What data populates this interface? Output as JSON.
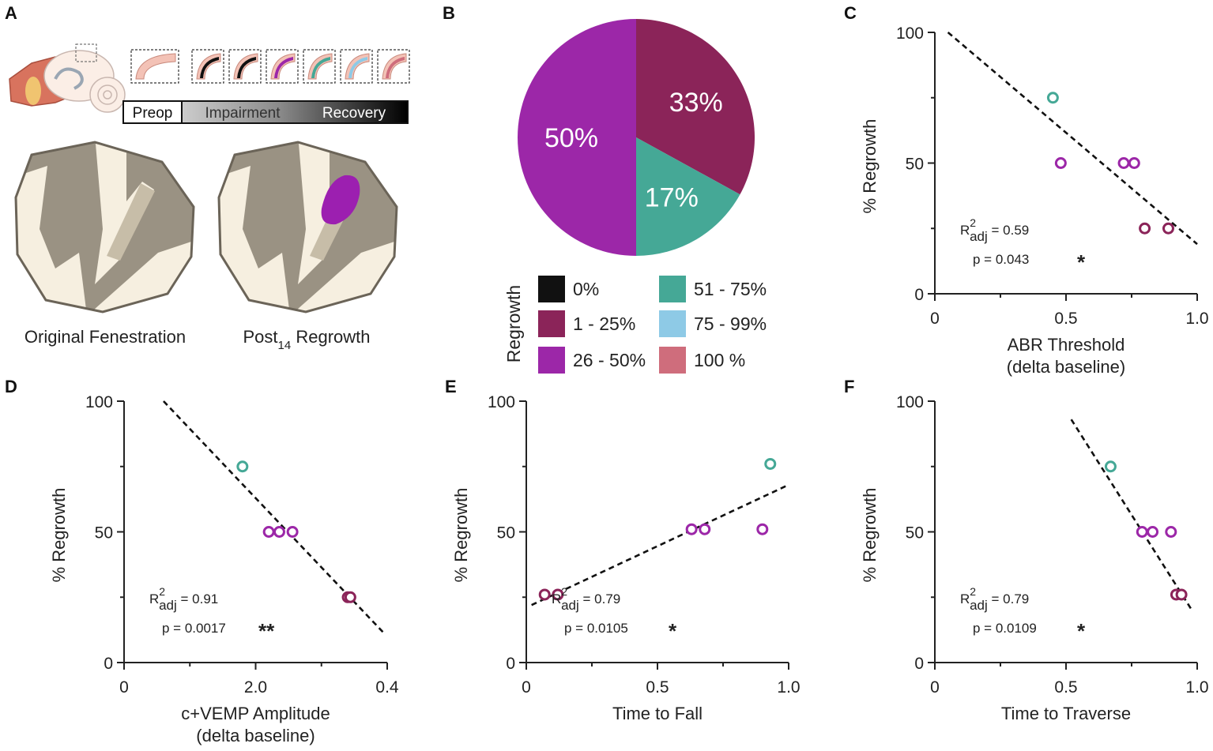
{
  "panel_labels": {
    "a": "A",
    "b": "B",
    "c": "C",
    "d": "D",
    "e": "E",
    "f": "F"
  },
  "panel_a": {
    "stage_bar": {
      "preop": "Preop",
      "impairment": "Impairment",
      "recovery": "Recovery"
    },
    "caption_left": "Original Fenestration",
    "caption_right_main": "Post",
    "caption_right_sub": "14",
    "caption_right_tail": " Regrowth",
    "icon_fill_colors": [
      "#ffffff",
      "#111111",
      "#111111",
      "#9c27a8",
      "#45a896",
      "#8ecae6",
      "#cf6d7c"
    ]
  },
  "colors": {
    "c0": "#111111",
    "c1_25": "#8b2459",
    "c26_50": "#9c27a8",
    "c51_75": "#45a896",
    "c75_99": "#8ecae6",
    "c100": "#cf6d7c",
    "regrowth_patch": "#9c1fb0"
  },
  "chart_data": [
    {
      "id": "B",
      "type": "pie",
      "slices": [
        {
          "label": "33%",
          "value": 33,
          "color": "#8b2459"
        },
        {
          "label": "17%",
          "value": 17,
          "color": "#45a896"
        },
        {
          "label": "50%",
          "value": 50,
          "color": "#9c27a8"
        }
      ],
      "legend_title": "Regrowth",
      "legend": [
        {
          "label": "0%",
          "color": "#111111"
        },
        {
          "label": "51 - 75%",
          "color": "#45a896"
        },
        {
          "label": "1 - 25%",
          "color": "#8b2459"
        },
        {
          "label": "75 - 99%",
          "color": "#8ecae6"
        },
        {
          "label": "26 - 50%",
          "color": "#9c27a8"
        },
        {
          "label": "100 %",
          "color": "#cf6d7c"
        }
      ]
    },
    {
      "id": "C",
      "type": "scatter",
      "xlabel": [
        "ABR Threshold",
        "(delta baseline)"
      ],
      "ylabel": "% Regrowth",
      "xlim": [
        0,
        1
      ],
      "ylim": [
        0,
        100
      ],
      "xticks": [
        "0",
        "0.5",
        "1.0"
      ],
      "yticks": [
        "0",
        "50",
        "100"
      ],
      "points": [
        {
          "x": 0.45,
          "y": 75,
          "color": "#45a896"
        },
        {
          "x": 0.48,
          "y": 50,
          "color": "#9c27a8"
        },
        {
          "x": 0.72,
          "y": 50,
          "color": "#9c27a8"
        },
        {
          "x": 0.76,
          "y": 50,
          "color": "#9c27a8"
        },
        {
          "x": 0.8,
          "y": 25,
          "color": "#8b2459"
        },
        {
          "x": 0.89,
          "y": 25,
          "color": "#8b2459"
        }
      ],
      "fit": {
        "x": [
          0.05,
          1.0
        ],
        "y": [
          100,
          19
        ]
      },
      "stat": {
        "r2_label": "R",
        "r2_sup": "2",
        "r2_sub": "adj",
        "r2_value": " = 0.59",
        "p": "p = 0.043",
        "sig": "*"
      }
    },
    {
      "id": "D",
      "type": "scatter",
      "xlabel": [
        "c+VEMP Amplitude",
        "(delta baseline)"
      ],
      "ylabel": "% Regrowth",
      "xlim": [
        0,
        1
      ],
      "ylim": [
        0,
        100
      ],
      "xticks": [
        "0",
        "2.0",
        "0.4"
      ],
      "yticks": [
        "0",
        "50",
        "100"
      ],
      "points": [
        {
          "x": 0.45,
          "y": 75,
          "color": "#45a896"
        },
        {
          "x": 0.55,
          "y": 50,
          "color": "#9c27a8"
        },
        {
          "x": 0.59,
          "y": 50,
          "color": "#9c27a8"
        },
        {
          "x": 0.64,
          "y": 50,
          "color": "#9c27a8"
        },
        {
          "x": 0.85,
          "y": 25,
          "color": "#8b2459"
        },
        {
          "x": 0.86,
          "y": 25,
          "color": "#8b2459"
        }
      ],
      "fit": {
        "x": [
          0.15,
          0.99
        ],
        "y": [
          100,
          11
        ]
      },
      "stat": {
        "r2_label": "R",
        "r2_sup": "2",
        "r2_sub": "adj",
        "r2_value": " = 0.91",
        "p": "p = 0.0017",
        "sig": "**"
      }
    },
    {
      "id": "E",
      "type": "scatter",
      "xlabel": [
        "Time to Fall"
      ],
      "ylabel": "% Regrowth",
      "xlim": [
        0,
        1
      ],
      "ylim": [
        0,
        100
      ],
      "xticks": [
        "0",
        "0.5",
        "1.0"
      ],
      "yticks": [
        "0",
        "50",
        "100"
      ],
      "points": [
        {
          "x": 0.93,
          "y": 76,
          "color": "#45a896"
        },
        {
          "x": 0.63,
          "y": 51,
          "color": "#9c27a8"
        },
        {
          "x": 0.68,
          "y": 51,
          "color": "#9c27a8"
        },
        {
          "x": 0.9,
          "y": 51,
          "color": "#9c27a8"
        },
        {
          "x": 0.07,
          "y": 26,
          "color": "#8b2459"
        },
        {
          "x": 0.12,
          "y": 26,
          "color": "#8b2459"
        }
      ],
      "fit": {
        "x": [
          0.02,
          1.0
        ],
        "y": [
          22,
          68
        ]
      },
      "stat": {
        "r2_label": "R",
        "r2_sup": "2",
        "r2_sub": "adj",
        "r2_value": " = 0.79",
        "p": "p = 0.0105",
        "sig": "*"
      }
    },
    {
      "id": "F",
      "type": "scatter",
      "xlabel": [
        "Time to Traverse"
      ],
      "ylabel": "% Regrowth",
      "xlim": [
        0,
        1
      ],
      "ylim": [
        0,
        100
      ],
      "xticks": [
        "0",
        "0.5",
        "1.0"
      ],
      "yticks": [
        "0",
        "50",
        "100"
      ],
      "points": [
        {
          "x": 0.67,
          "y": 75,
          "color": "#45a896"
        },
        {
          "x": 0.79,
          "y": 50,
          "color": "#9c27a8"
        },
        {
          "x": 0.83,
          "y": 50,
          "color": "#9c27a8"
        },
        {
          "x": 0.9,
          "y": 50,
          "color": "#9c27a8"
        },
        {
          "x": 0.92,
          "y": 26,
          "color": "#8b2459"
        },
        {
          "x": 0.94,
          "y": 26,
          "color": "#8b2459"
        }
      ],
      "fit": {
        "x": [
          0.52,
          0.98
        ],
        "y": [
          93,
          20
        ]
      },
      "stat": {
        "r2_label": "R",
        "r2_sup": "2",
        "r2_sub": "adj",
        "r2_value": " = 0.79",
        "p": "p = 0.0109",
        "sig": "*"
      }
    }
  ]
}
